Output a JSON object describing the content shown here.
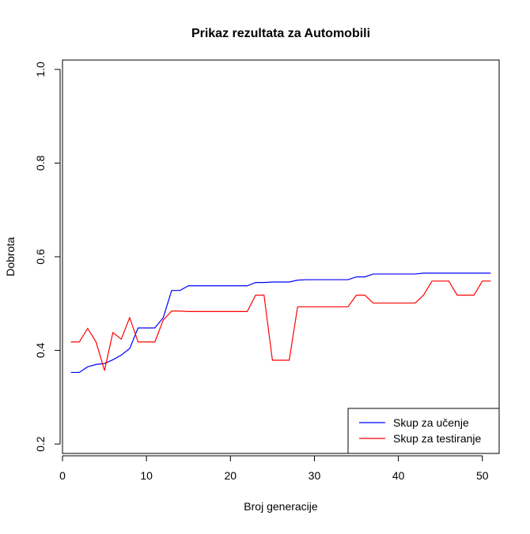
{
  "chart_data": {
    "type": "line",
    "title": "Prikaz rezultata za Automobili",
    "xlabel": "Broj generacije",
    "ylabel": "Dobrota",
    "xlim": [
      0,
      52
    ],
    "ylim": [
      0.18,
      1.02
    ],
    "xticks": [
      0,
      10,
      20,
      30,
      40,
      50
    ],
    "yticks": [
      0.2,
      0.4,
      0.6,
      0.8,
      1.0
    ],
    "xtick_labels": [
      "0",
      "10",
      "20",
      "30",
      "40",
      "50"
    ],
    "ytick_labels": [
      "0.2",
      "0.4",
      "0.6",
      "0.8",
      "1.0"
    ],
    "legend_position": "bottom-right",
    "grid": false,
    "x": [
      1,
      2,
      3,
      4,
      5,
      6,
      7,
      8,
      9,
      10,
      11,
      12,
      13,
      14,
      15,
      16,
      17,
      18,
      19,
      20,
      21,
      22,
      23,
      24,
      25,
      26,
      27,
      28,
      29,
      30,
      31,
      32,
      33,
      34,
      35,
      36,
      37,
      38,
      39,
      40,
      41,
      42,
      43,
      44,
      45,
      46,
      47,
      48,
      49,
      50,
      51
    ],
    "series": [
      {
        "name": "Skup za učenje",
        "color": "#0000ff",
        "values": [
          0.353,
          0.353,
          0.365,
          0.37,
          0.372,
          0.38,
          0.39,
          0.404,
          0.448,
          0.448,
          0.448,
          0.47,
          0.528,
          0.528,
          0.538,
          0.538,
          0.538,
          0.538,
          0.538,
          0.538,
          0.538,
          0.538,
          0.545,
          0.545,
          0.546,
          0.546,
          0.546,
          0.55,
          0.551,
          0.551,
          0.551,
          0.551,
          0.551,
          0.551,
          0.557,
          0.557,
          0.563,
          0.563,
          0.563,
          0.563,
          0.563,
          0.563,
          0.565,
          0.565,
          0.565,
          0.565,
          0.565,
          0.565,
          0.565,
          0.565,
          0.565
        ]
      },
      {
        "name": "Skup za testiranje",
        "color": "#ff0000",
        "values": [
          0.418,
          0.418,
          0.447,
          0.418,
          0.357,
          0.438,
          0.424,
          0.47,
          0.418,
          0.418,
          0.418,
          0.465,
          0.484,
          0.484,
          0.483,
          0.483,
          0.483,
          0.483,
          0.483,
          0.483,
          0.483,
          0.483,
          0.518,
          0.518,
          0.379,
          0.379,
          0.379,
          0.493,
          0.493,
          0.493,
          0.493,
          0.493,
          0.493,
          0.493,
          0.518,
          0.518,
          0.501,
          0.501,
          0.501,
          0.501,
          0.501,
          0.501,
          0.518,
          0.548,
          0.548,
          0.548,
          0.518,
          0.518,
          0.518,
          0.548,
          0.548
        ]
      }
    ]
  }
}
